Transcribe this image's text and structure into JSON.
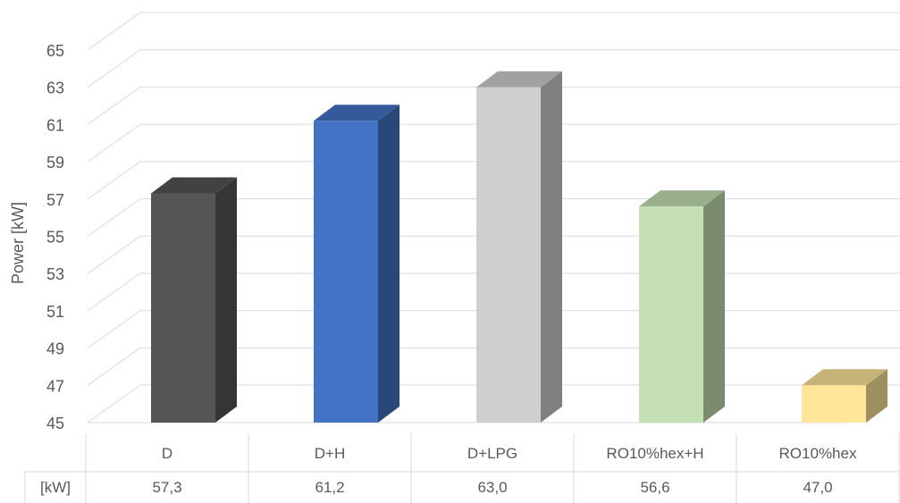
{
  "chart_data": {
    "type": "bar",
    "title": "",
    "xlabel": "",
    "ylabel": "Power [kW]",
    "ylim": [
      45,
      65
    ],
    "yticks": [
      45,
      47,
      49,
      51,
      53,
      55,
      57,
      59,
      61,
      63,
      65
    ],
    "grid": true,
    "legend": "none",
    "categories": [
      "D",
      "D+H",
      "D+LPG",
      "RO10%hex+H",
      "RO10%hex"
    ],
    "values": [
      57.3,
      61.2,
      63.0,
      56.6,
      47.0
    ],
    "colors": [
      "#555555",
      "#4472C4",
      "#D0CECE",
      "#C5E0B4",
      "#FFE699"
    ],
    "data_table": {
      "row_label": "[kW]",
      "values": [
        "57,3",
        "61,2",
        "63,0",
        "56,6",
        "47,0"
      ]
    }
  }
}
